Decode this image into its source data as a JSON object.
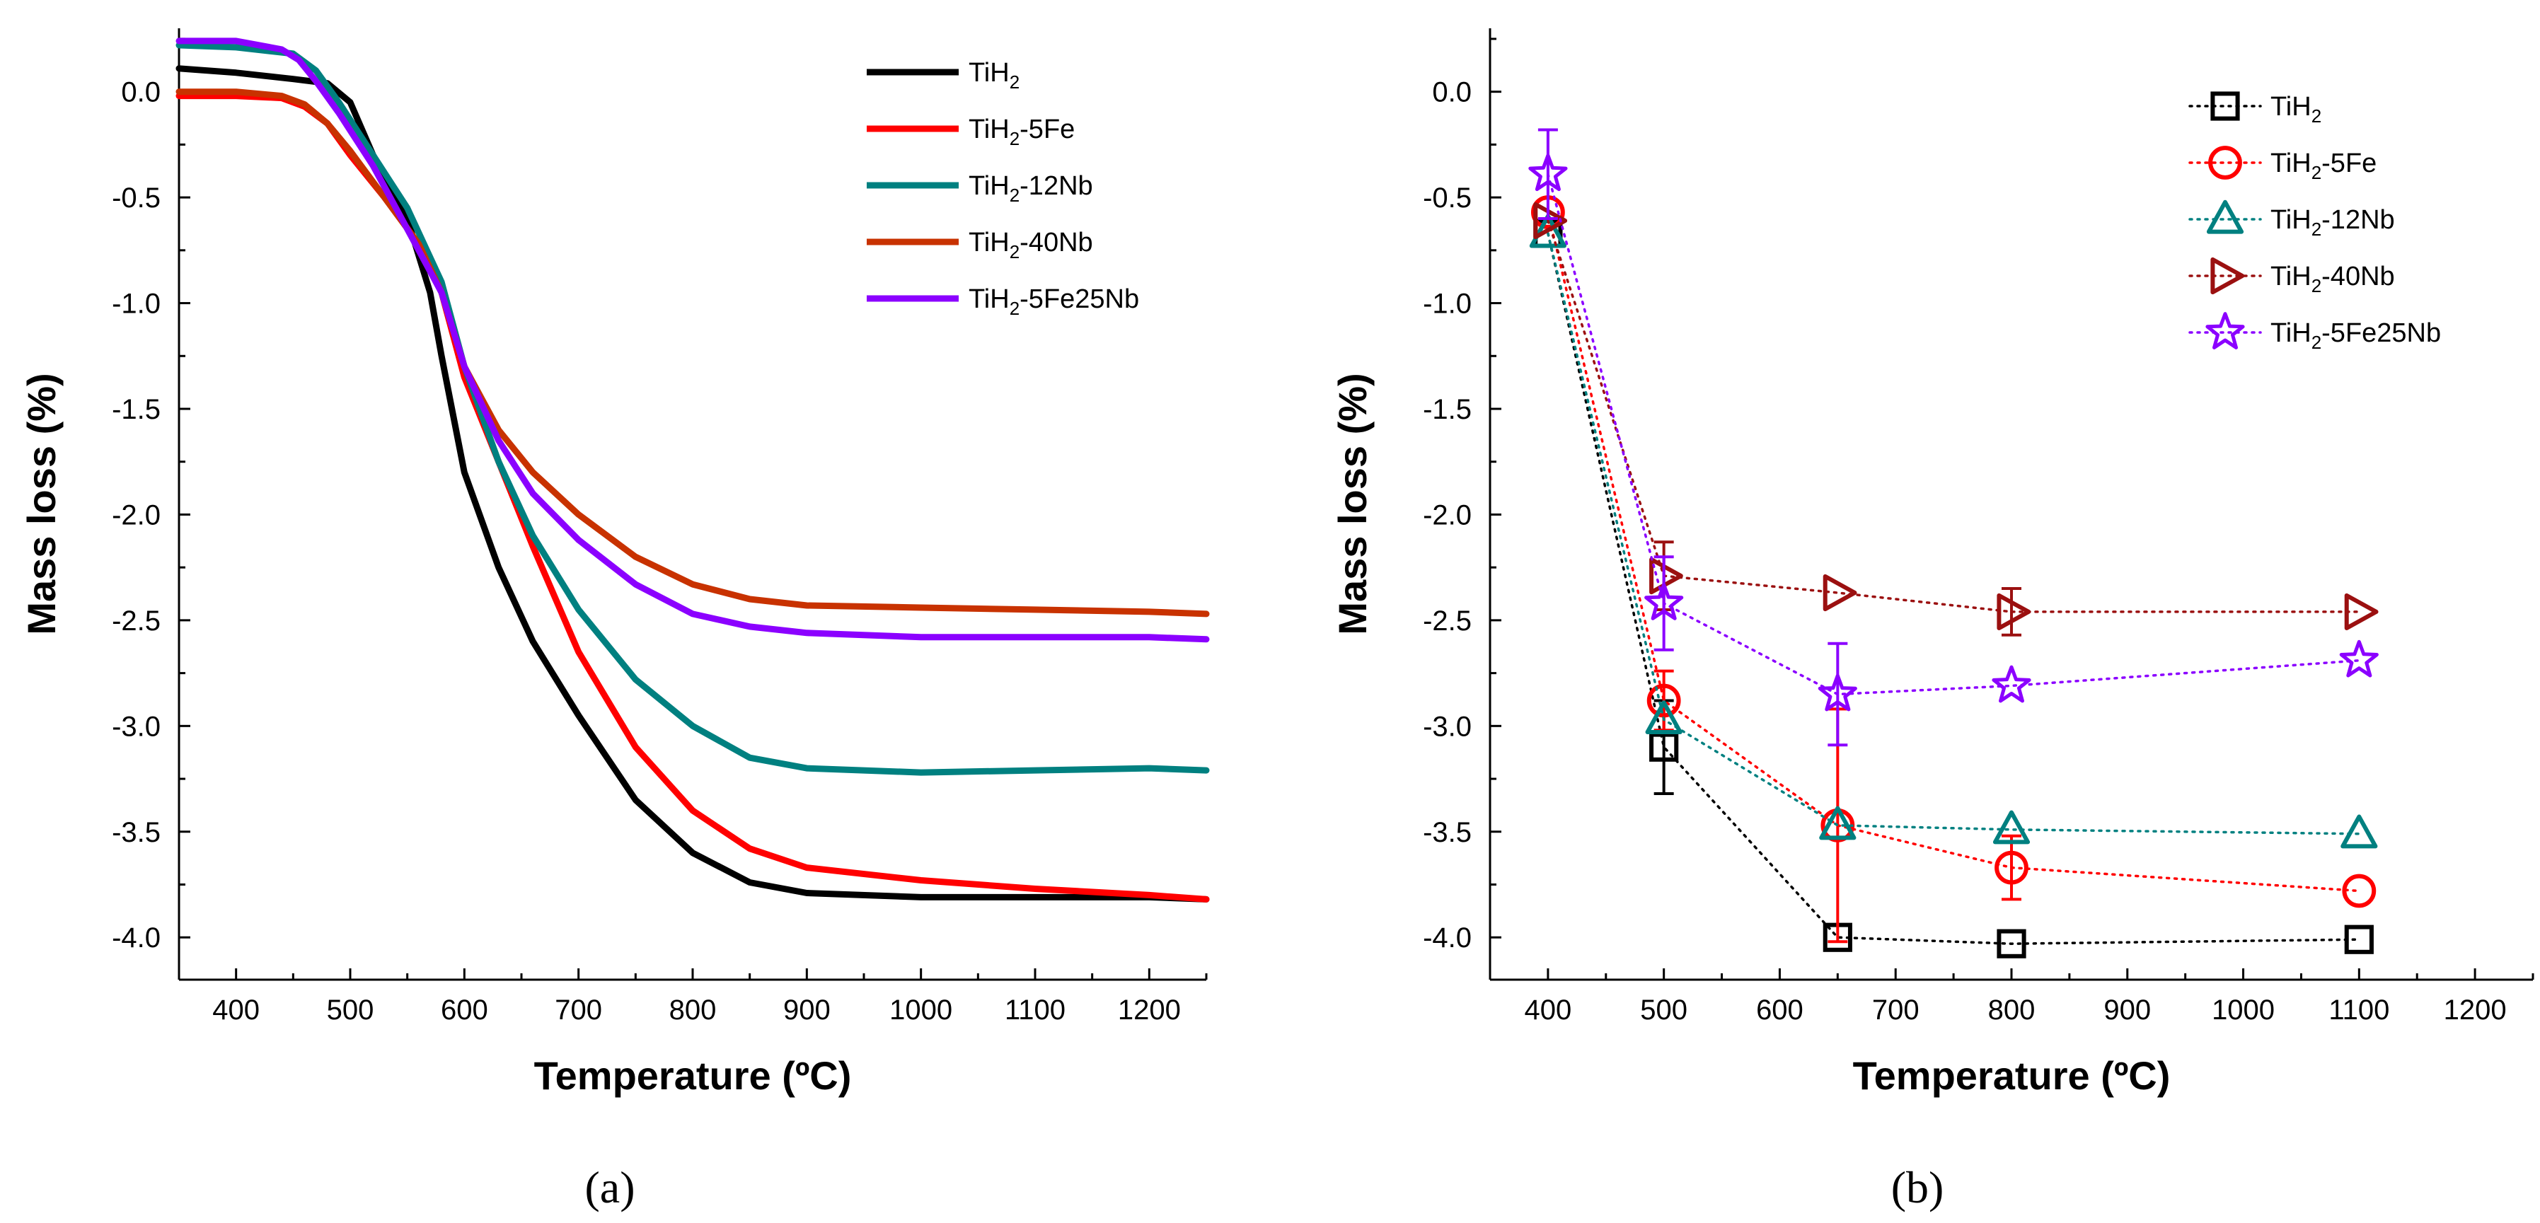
{
  "chart_data": [
    {
      "panel_label": "(a)",
      "type": "line",
      "xlabel": "Temperature (ºC)",
      "ylabel": "Mass loss (%)",
      "xlim": [
        350,
        1250
      ],
      "ylim": [
        -4.2,
        0.3
      ],
      "xticks": [
        400,
        500,
        600,
        700,
        800,
        900,
        1000,
        1100,
        1200
      ],
      "yticks": [
        0.0,
        -0.5,
        -1.0,
        -1.5,
        -2.0,
        -2.5,
        -3.0,
        -3.5,
        -4.0
      ],
      "ytick_labels": [
        "0.0",
        "-0.5",
        "-1.0",
        "-1.5",
        "-2.0",
        "-2.5",
        "-3.0",
        "-3.5",
        "-4.0"
      ],
      "legend_position": "top-right",
      "series": [
        {
          "name": "TiH2",
          "name_base": "TiH",
          "name_sub": "2",
          "name_suffix": "",
          "color": "#000000",
          "x": [
            350,
            400,
            450,
            480,
            500,
            520,
            550,
            570,
            580,
            600,
            630,
            660,
            700,
            750,
            800,
            850,
            900,
            1000,
            1100,
            1200,
            1250
          ],
          "y": [
            0.11,
            0.09,
            0.06,
            0.04,
            -0.05,
            -0.3,
            -0.6,
            -0.95,
            -1.25,
            -1.8,
            -2.25,
            -2.6,
            -2.95,
            -3.35,
            -3.6,
            -3.74,
            -3.79,
            -3.81,
            -3.81,
            -3.81,
            -3.82
          ]
        },
        {
          "name": "TiH2-5Fe",
          "name_base": "TiH",
          "name_sub": "2",
          "name_suffix": "-5Fe",
          "color": "#ff0000",
          "x": [
            350,
            400,
            440,
            460,
            480,
            500,
            530,
            560,
            580,
            600,
            630,
            660,
            700,
            750,
            800,
            850,
            900,
            1000,
            1100,
            1200,
            1250
          ],
          "y": [
            -0.02,
            -0.02,
            -0.03,
            -0.07,
            -0.15,
            -0.3,
            -0.5,
            -0.72,
            -0.95,
            -1.35,
            -1.75,
            -2.15,
            -2.65,
            -3.1,
            -3.4,
            -3.58,
            -3.67,
            -3.73,
            -3.77,
            -3.8,
            -3.82
          ]
        },
        {
          "name": "TiH2-12Nb",
          "name_base": "TiH",
          "name_sub": "2",
          "name_suffix": "-12Nb",
          "color": "#008080",
          "x": [
            350,
            400,
            450,
            470,
            490,
            520,
            550,
            580,
            600,
            630,
            660,
            700,
            750,
            800,
            850,
            900,
            1000,
            1100,
            1200,
            1250
          ],
          "y": [
            0.22,
            0.21,
            0.18,
            0.1,
            -0.05,
            -0.3,
            -0.55,
            -0.9,
            -1.3,
            -1.75,
            -2.1,
            -2.45,
            -2.78,
            -3.0,
            -3.15,
            -3.2,
            -3.22,
            -3.21,
            -3.2,
            -3.21
          ]
        },
        {
          "name": "TiH2-40Nb",
          "name_base": "TiH",
          "name_sub": "2",
          "name_suffix": "-40Nb",
          "color": "#c83200",
          "x": [
            350,
            400,
            440,
            460,
            480,
            500,
            530,
            560,
            580,
            600,
            630,
            660,
            700,
            750,
            800,
            850,
            900,
            1000,
            1100,
            1200,
            1250
          ],
          "y": [
            0.0,
            0.0,
            -0.02,
            -0.06,
            -0.15,
            -0.28,
            -0.5,
            -0.72,
            -0.95,
            -1.3,
            -1.6,
            -1.8,
            -2.0,
            -2.2,
            -2.33,
            -2.4,
            -2.43,
            -2.44,
            -2.45,
            -2.46,
            -2.47
          ]
        },
        {
          "name": "TiH2-5Fe25Nb",
          "name_base": "TiH",
          "name_sub": "2",
          "name_suffix": "-5Fe25Nb",
          "color": "#8b00ff",
          "x": [
            350,
            400,
            440,
            455,
            470,
            490,
            520,
            550,
            580,
            600,
            630,
            660,
            700,
            750,
            800,
            850,
            900,
            1000,
            1100,
            1200,
            1250
          ],
          "y": [
            0.24,
            0.24,
            0.2,
            0.15,
            0.05,
            -0.1,
            -0.35,
            -0.65,
            -0.95,
            -1.3,
            -1.65,
            -1.9,
            -2.12,
            -2.33,
            -2.47,
            -2.53,
            -2.56,
            -2.58,
            -2.58,
            -2.58,
            -2.59
          ]
        }
      ]
    },
    {
      "panel_label": "(b)",
      "type": "scatter",
      "xlabel": "Temperature (ºC)",
      "ylabel": "Mass loss (%)",
      "xlim": [
        350,
        1250
      ],
      "ylim": [
        -4.2,
        0.3
      ],
      "xticks": [
        400,
        500,
        600,
        700,
        800,
        900,
        1000,
        1100,
        1200
      ],
      "yticks": [
        0.0,
        -0.5,
        -1.0,
        -1.5,
        -2.0,
        -2.5,
        -3.0,
        -3.5,
        -4.0
      ],
      "ytick_labels": [
        "0.0",
        "-0.5",
        "-1.0",
        "-1.5",
        "-2.0",
        "-2.5",
        "-3.0",
        "-3.5",
        "-4.0"
      ],
      "legend_position": "top-right",
      "line_style": "dotted",
      "series": [
        {
          "name": "TiH2",
          "name_base": "TiH",
          "name_sub": "2",
          "name_suffix": "",
          "color": "#000000",
          "marker": "square",
          "x": [
            400,
            500,
            650,
            800,
            1100
          ],
          "y": [
            -0.67,
            -3.1,
            -4.0,
            -4.03,
            -4.01
          ],
          "err": [
            0,
            0.22,
            0,
            0,
            0
          ]
        },
        {
          "name": "TiH2-5Fe",
          "name_base": "TiH",
          "name_sub": "2",
          "name_suffix": "-5Fe",
          "color": "#ff0000",
          "marker": "circle",
          "x": [
            400,
            500,
            650,
            800,
            1100
          ],
          "y": [
            -0.57,
            -2.88,
            -3.47,
            -3.67,
            -3.78
          ],
          "err": [
            0,
            0.14,
            0.55,
            0.15,
            0
          ]
        },
        {
          "name": "TiH2-12Nb",
          "name_base": "TiH",
          "name_sub": "2",
          "name_suffix": "-12Nb",
          "color": "#008080",
          "marker": "triangle-up",
          "x": [
            400,
            500,
            650,
            800,
            1100
          ],
          "y": [
            -0.67,
            -2.97,
            -3.47,
            -3.49,
            -3.51
          ],
          "err": [
            0,
            0,
            0,
            0,
            0
          ]
        },
        {
          "name": "TiH2-40Nb",
          "name_base": "TiH",
          "name_sub": "2",
          "name_suffix": "-40Nb",
          "color": "#9b1010",
          "marker": "triangle-right",
          "x": [
            400,
            500,
            650,
            800,
            1100
          ],
          "y": [
            -0.61,
            -2.29,
            -2.37,
            -2.46,
            -2.46
          ],
          "err": [
            0,
            0.16,
            0,
            0.11,
            0
          ]
        },
        {
          "name": "TiH2-5Fe25Nb",
          "name_base": "TiH",
          "name_sub": "2",
          "name_suffix": "-5Fe25Nb",
          "color": "#8b00ff",
          "marker": "star",
          "x": [
            400,
            500,
            650,
            800,
            1100
          ],
          "y": [
            -0.39,
            -2.42,
            -2.85,
            -2.81,
            -2.69
          ],
          "err": [
            0.21,
            0.22,
            0.24,
            0,
            0
          ]
        }
      ]
    }
  ]
}
